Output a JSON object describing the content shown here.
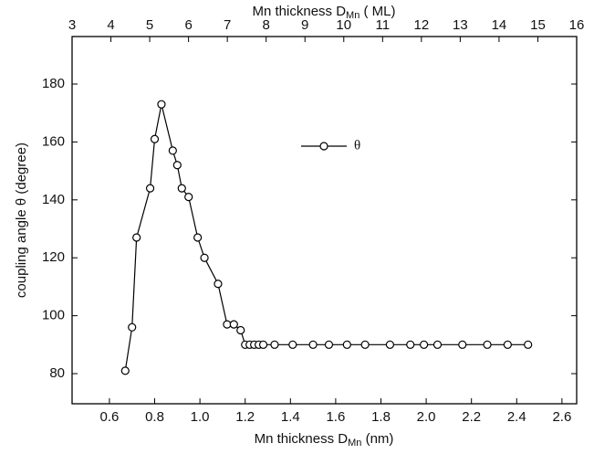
{
  "chart_data": {
    "type": "line",
    "x_label": [
      "Mn thickness  D",
      "Mn",
      " (nm)"
    ],
    "x2_label": [
      "Mn thickness D",
      "Mn",
      " ( ML)"
    ],
    "y_label": "coupling  angle  θ (degree)",
    "series": [
      {
        "name": "θ",
        "color": "#000000",
        "x": [
          0.67,
          0.7,
          0.72,
          0.78,
          0.8,
          0.83,
          0.88,
          0.9,
          0.92,
          0.95,
          0.99,
          1.02,
          1.08,
          1.12,
          1.15,
          1.18,
          1.2,
          1.22,
          1.24,
          1.26,
          1.28,
          1.33,
          1.41,
          1.5,
          1.57,
          1.65,
          1.73,
          1.84,
          1.93,
          1.99,
          2.05,
          2.16,
          2.27,
          2.36,
          2.45
        ],
        "values": [
          81,
          96,
          127,
          144,
          161,
          173,
          157,
          152,
          144,
          141,
          127,
          120,
          111,
          97,
          97,
          95,
          90,
          90,
          90,
          90,
          90,
          90,
          90,
          90,
          90,
          90,
          90,
          90,
          90,
          90,
          90,
          90,
          90,
          90,
          90
        ]
      }
    ],
    "xlim": [
      0.435,
      2.665
    ],
    "xticks": [
      0.6,
      0.8,
      {
        "value": 1,
        "label": "1.0"
      },
      1.2,
      1.4,
      1.6,
      1.8,
      {
        "value": 2,
        "label": "2.0"
      },
      2.2,
      2.4,
      2.6
    ],
    "x2lim": [
      3,
      16
    ],
    "x2ticks": [
      3,
      4,
      5,
      6,
      7,
      8,
      9,
      10,
      11,
      12,
      13,
      14,
      15,
      16
    ],
    "ylim": [
      69.6,
      196.4
    ],
    "yticks": [
      80,
      100,
      120,
      140,
      160,
      180
    ],
    "legend": "upper right"
  }
}
